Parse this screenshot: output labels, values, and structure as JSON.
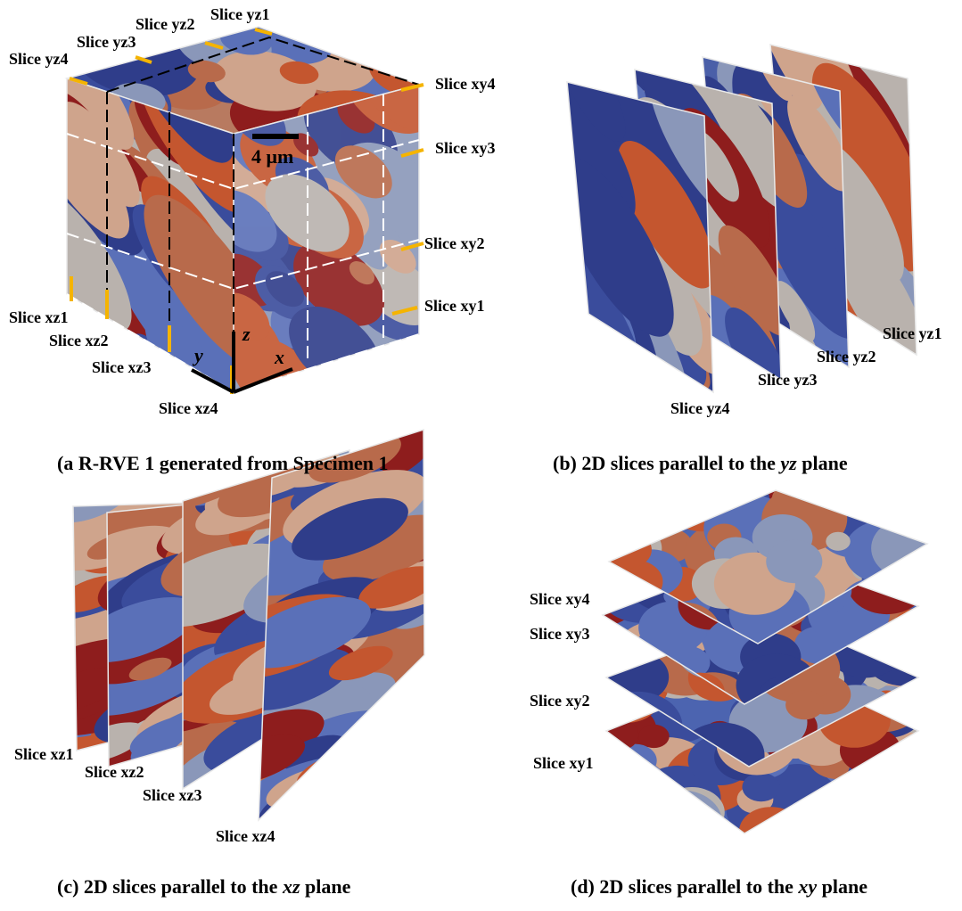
{
  "panel_a": {
    "labels": {
      "yz1": "Slice yz1",
      "yz2": "Slice yz2",
      "yz3": "Slice yz3",
      "yz4": "Slice yz4",
      "xy4": "Slice xy4",
      "xy3": "Slice xy3",
      "xy2": "Slice xy2",
      "xy1": "Slice xy1",
      "xz1": "Slice xz1",
      "xz2": "Slice xz2",
      "xz3": "Slice xz3",
      "xz4": "Slice xz4"
    },
    "scale_bar": "4 μm",
    "axes": {
      "z": "z",
      "y": "y",
      "x": "x"
    },
    "caption": "(a R-RVE 1 generated from Specimen 1"
  },
  "panel_b": {
    "labels": {
      "yz1": "Slice yz1",
      "yz2": "Slice yz2",
      "yz3": "Slice yz3",
      "yz4": "Slice yz4"
    },
    "caption": {
      "before": "(b) 2D slices parallel to the",
      "italic": "yz",
      "after": "plane"
    }
  },
  "panel_c": {
    "labels": {
      "xz1": "Slice xz1",
      "xz2": "Slice xz2",
      "xz3": "Slice xz3",
      "xz4": "Slice xz4"
    },
    "caption": {
      "before": "(c) 2D slices parallel to the",
      "italic": "xz",
      "after": "plane"
    }
  },
  "panel_d": {
    "labels": {
      "xy4": "Slice xy4",
      "xy3": "Slice xy3",
      "xy2": "Slice xy2",
      "xy1": "Slice xy1"
    },
    "caption": {
      "before": "(d) 2D slices parallel to the",
      "italic": "xy",
      "after": "plane"
    }
  }
}
